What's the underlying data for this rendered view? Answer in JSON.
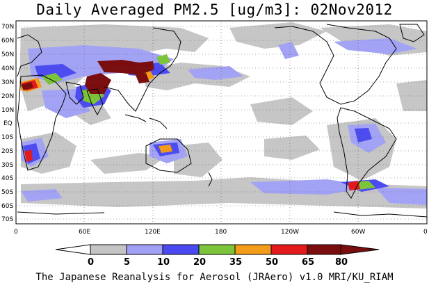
{
  "title": "Daily Averaged PM2.5 [ug/m3]: 02Nov2012",
  "credit": "The Japanese Reanalysis for Aerosol (JRAero) v1.0 MRI/KU_RIAM",
  "map": {
    "lat_labels": [
      "70N",
      "60N",
      "50N",
      "40N",
      "30N",
      "20N",
      "10N",
      "EQ",
      "10S",
      "20S",
      "30S",
      "40S",
      "50S",
      "60S",
      "70S"
    ],
    "lon_labels": [
      "0",
      "60E",
      "120E",
      "180",
      "120W",
      "60W",
      "0"
    ]
  },
  "colorbar": {
    "levels": [
      "0",
      "5",
      "10",
      "20",
      "35",
      "50",
      "65",
      "80"
    ],
    "colors": [
      "#ffffff",
      "#c4c4c4",
      "#a0a0f4",
      "#4a4af0",
      "#7cc43a",
      "#f39c1a",
      "#e31a1c",
      "#7a0e0e"
    ]
  }
}
